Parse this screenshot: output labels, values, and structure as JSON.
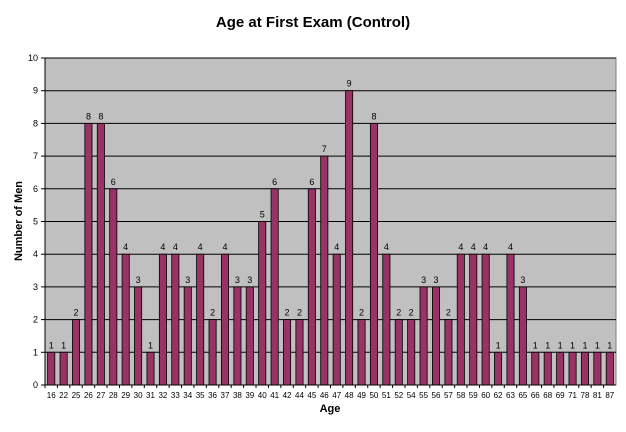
{
  "chart_data": {
    "type": "bar",
    "title": "Age at First Exam (Control)",
    "xlabel": "Age",
    "ylabel": "Number of Men",
    "ylim": [
      0,
      10
    ],
    "yticks": [
      0,
      1,
      2,
      3,
      4,
      5,
      6,
      7,
      8,
      9,
      10
    ],
    "grid": true,
    "legend": "none",
    "colors": {
      "plot_background": "#c0c0c0",
      "bar_fill": "#993366",
      "bar_edge": "#000000",
      "gridline": "#000000"
    },
    "categories": [
      "16",
      "22",
      "25",
      "26",
      "27",
      "28",
      "29",
      "30",
      "31",
      "32",
      "33",
      "34",
      "35",
      "36",
      "37",
      "38",
      "39",
      "40",
      "41",
      "42",
      "44",
      "45",
      "46",
      "47",
      "48",
      "49",
      "50",
      "51",
      "52",
      "54",
      "55",
      "56",
      "57",
      "58",
      "59",
      "60",
      "62",
      "63",
      "65",
      "66",
      "68",
      "69",
      "71",
      "78",
      "81",
      "87"
    ],
    "values": [
      1,
      1,
      2,
      8,
      8,
      6,
      4,
      3,
      1,
      4,
      4,
      3,
      4,
      2,
      4,
      3,
      3,
      5,
      6,
      2,
      2,
      6,
      7,
      4,
      9,
      2,
      8,
      4,
      2,
      2,
      3,
      3,
      2,
      4,
      4,
      4,
      1,
      4,
      3,
      1,
      1,
      1,
      1,
      1,
      1,
      1
    ]
  }
}
